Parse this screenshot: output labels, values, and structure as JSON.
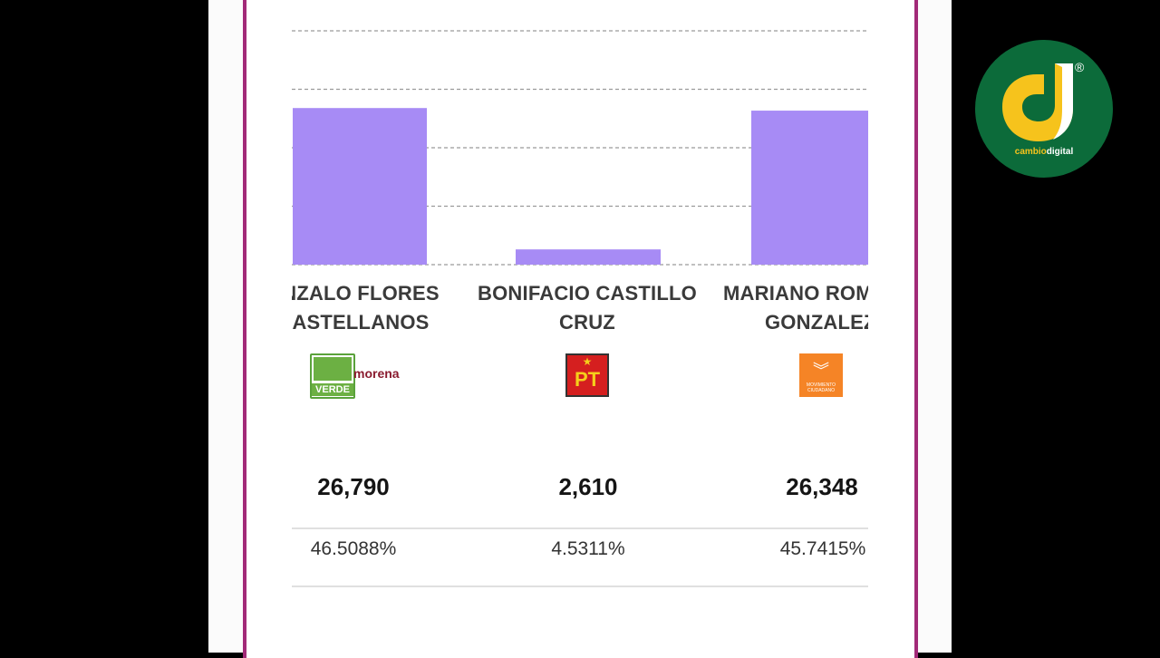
{
  "chart_data": {
    "type": "bar",
    "categories": [
      "NZALO FLORES ASTELLANOS",
      "BONIFACIO CASTILLO CRUZ",
      "MARIANO ROM GONZALEZ"
    ],
    "values": [
      26790,
      2610,
      26348
    ],
    "ylim": [
      0,
      40000
    ],
    "grid": true,
    "bar_color": "#a78bf5"
  },
  "candidates": [
    {
      "name_line1": "NZALO FLORES",
      "name_line2": "ASTELLANOS",
      "votes": "26,790",
      "percent": "46.5088%",
      "party": "VERDE morena"
    },
    {
      "name_line1": "BONIFACIO CASTILLO",
      "name_line2": "CRUZ",
      "votes": "2,610",
      "percent": "4.5311%",
      "party": "PT"
    },
    {
      "name_line1": "MARIANO ROM",
      "name_line2": "GONZALEZ",
      "votes": "26,348",
      "percent": "45.7415%",
      "party": "MOVIMIENTO CIUDADANO"
    }
  ],
  "logos": {
    "verde_text": "VERDE",
    "morena_text": "morena",
    "pt_text": "PT",
    "mc_text": "MOVIMIENTO CIUDADANO"
  },
  "brand": {
    "name_a": "cambio",
    "name_b": "digital",
    "reg": "®",
    "colors": {
      "circle": "#0c6b3a",
      "accent": "#f6c31c"
    }
  },
  "colors": {
    "frame": "#a22a78",
    "bar": "#a78bf5"
  }
}
